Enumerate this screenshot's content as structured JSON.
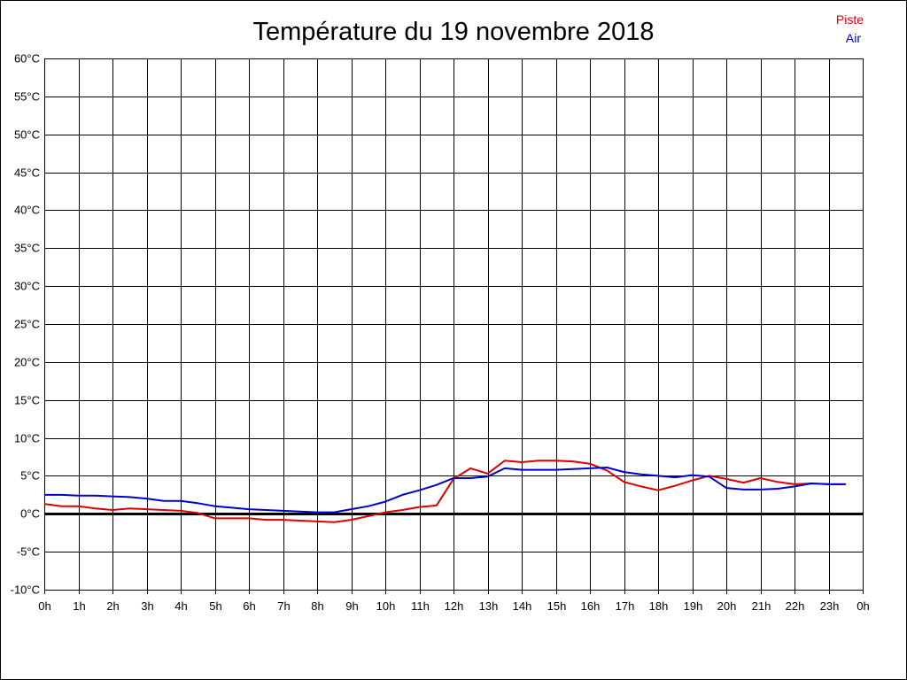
{
  "chart_data": {
    "type": "line",
    "title": "Température du 19 novembre 2018",
    "ylim": [
      -10,
      60
    ],
    "y_step": 5,
    "y_unit": "°C",
    "y_tick_labels": [
      "-10°C",
      "-5°C",
      "0°C",
      "5°C",
      "10°C",
      "15°C",
      "20°C",
      "25°C",
      "30°C",
      "35°C",
      "40°C",
      "45°C",
      "50°C",
      "55°C",
      "60°C"
    ],
    "xlim": [
      0,
      24
    ],
    "x_tick_labels": [
      "0h",
      "1h",
      "2h",
      "3h",
      "4h",
      "5h",
      "6h",
      "7h",
      "8h",
      "9h",
      "10h",
      "11h",
      "12h",
      "13h",
      "14h",
      "15h",
      "16h",
      "17h",
      "18h",
      "19h",
      "20h",
      "21h",
      "22h",
      "23h",
      "0h"
    ],
    "grid": true,
    "zero_line": true,
    "legend_position": "top-right",
    "series": [
      {
        "name": "Piste",
        "color": "#dd0000",
        "x": [
          0,
          0.5,
          1,
          1.5,
          2,
          2.5,
          3,
          3.5,
          4,
          4.5,
          5,
          5.5,
          6,
          6.5,
          7,
          7.5,
          8,
          8.5,
          9,
          9.5,
          10,
          10.5,
          11,
          11.5,
          12,
          12.5,
          13,
          13.5,
          14,
          14.5,
          15,
          15.5,
          16,
          16.5,
          17,
          17.5,
          18,
          18.5,
          19,
          19.5,
          20,
          20.5,
          21,
          21.5,
          22,
          22.5,
          23,
          23.5
        ],
        "values": [
          1.3,
          1.0,
          1.0,
          0.7,
          0.5,
          0.7,
          0.6,
          0.5,
          0.4,
          0.1,
          -0.6,
          -0.6,
          -0.6,
          -0.8,
          -0.8,
          -0.9,
          -1.0,
          -1.1,
          -0.8,
          -0.3,
          0.2,
          0.5,
          0.9,
          1.1,
          4.6,
          6.0,
          5.3,
          7.0,
          6.8,
          7.0,
          7.0,
          6.9,
          6.6,
          5.7,
          4.2,
          3.6,
          3.1,
          3.7,
          4.4,
          5.0,
          4.6,
          4.1,
          4.7,
          4.2,
          3.9,
          4.0,
          3.9,
          3.9
        ]
      },
      {
        "name": "Air",
        "color": "#0000cc",
        "x": [
          0,
          0.5,
          1,
          1.5,
          2,
          2.5,
          3,
          3.5,
          4,
          4.5,
          5,
          5.5,
          6,
          6.5,
          7,
          7.5,
          8,
          8.5,
          9,
          9.5,
          10,
          10.5,
          11,
          11.5,
          12,
          12.5,
          13,
          13.5,
          14,
          14.5,
          15,
          15.5,
          16,
          16.5,
          17,
          17.5,
          18,
          18.5,
          19,
          19.5,
          20,
          20.5,
          21,
          21.5,
          22,
          22.5,
          23,
          23.5
        ],
        "values": [
          2.5,
          2.5,
          2.4,
          2.4,
          2.3,
          2.2,
          2.0,
          1.7,
          1.7,
          1.4,
          1.0,
          0.8,
          0.6,
          0.5,
          0.4,
          0.3,
          0.2,
          0.2,
          0.6,
          1.0,
          1.6,
          2.5,
          3.1,
          3.8,
          4.7,
          4.7,
          4.9,
          6.0,
          5.8,
          5.8,
          5.8,
          5.9,
          6.0,
          6.1,
          5.5,
          5.2,
          5.0,
          4.8,
          5.1,
          4.9,
          3.4,
          3.2,
          3.2,
          3.3,
          3.6,
          4.0,
          3.9,
          3.9
        ]
      }
    ]
  }
}
